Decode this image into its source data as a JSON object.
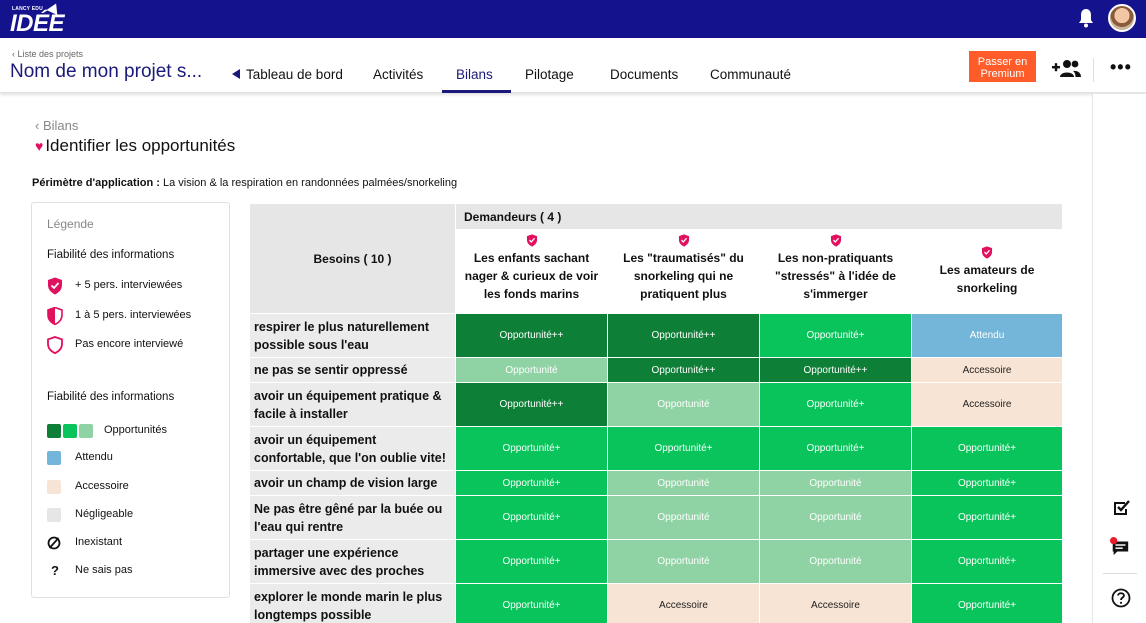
{
  "brand": {
    "small_text": "LANCY EDU",
    "logo_text": "IDÉE"
  },
  "header": {
    "back_link": "‹ Liste des projets",
    "project_name": "Nom de mon projet s...",
    "tabs": [
      {
        "label": "Tableau de bord"
      },
      {
        "label": "Activités"
      },
      {
        "label": "Bilans"
      },
      {
        "label": "Pilotage"
      },
      {
        "label": "Documents"
      },
      {
        "label": "Communauté"
      }
    ],
    "active_tab": "Bilans",
    "premium_button": "Passer en Premium",
    "more_label": "•••"
  },
  "page": {
    "breadcrumb": "‹ Bilans",
    "title": "Identifier les opportunités",
    "scope_label": "Périmètre d'application :",
    "scope_value": " La vision & la respiration en randonnées palmées/snorkeling"
  },
  "legend": {
    "title": "Légende",
    "section1": "Fiabilité des informations",
    "items1": [
      {
        "label": "+ 5 pers. interviewées"
      },
      {
        "label": "1 à 5 pers. interviewées"
      },
      {
        "label": "Pas encore interviewé"
      }
    ],
    "section2": "Fiabilité des informations",
    "items2": [
      {
        "label": "Opportunités"
      },
      {
        "label": "Attendu"
      },
      {
        "label": "Accessoire"
      },
      {
        "label": "Négligeable"
      },
      {
        "label": "Inexistant"
      },
      {
        "label": "Ne sais pas"
      }
    ],
    "colors": {
      "dark": "#0e7f36",
      "mid": "#08c45a",
      "light": "#8fd2a4",
      "attendu": "#73b6d9",
      "accessoire": "#f8e4d4",
      "negligeable": "#e6e6e6"
    }
  },
  "table": {
    "demandeurs_header": "Demandeurs ( 4 )",
    "besoins_header": "Besoins ( 10 )",
    "columns": [
      "Les enfants sachant nager & curieux de voir les fonds marins",
      "Les \"traumatisés\" du snorkeling qui ne pratiquent plus",
      "Les non-pratiquants \"stressés\" à l'idée de s'immerger",
      "Les amateurs de snorkeling"
    ],
    "rows": [
      {
        "need": "respirer le plus naturellement possible sous l'eau",
        "cells": [
          "Opportunité++",
          "Opportunité++",
          "Opportunité+",
          "Attendu"
        ]
      },
      {
        "need": "ne pas se sentir oppressé",
        "cells": [
          "Opportunité",
          "Opportunité++",
          "Opportunité++",
          "Accessoire"
        ]
      },
      {
        "need": "avoir un équipement pratique & facile à installer",
        "cells": [
          "Opportunité++",
          "Opportunité",
          "Opportunité+",
          "Accessoire"
        ]
      },
      {
        "need": "avoir un équipement confortable, que l'on oublie vite!",
        "cells": [
          "Opportunité+",
          "Opportunité+",
          "Opportunité+",
          "Opportunité+"
        ]
      },
      {
        "need": "avoir un champ de vision large",
        "cells": [
          "Opportunité+",
          "Opportunité",
          "Opportunité",
          "Opportunité+"
        ]
      },
      {
        "need": "Ne pas être gêné par la buée ou l'eau qui rentre",
        "cells": [
          "Opportunité+",
          "Opportunité",
          "Opportunité",
          "Opportunité+"
        ]
      },
      {
        "need": "partager une expérience immersive avec des proches",
        "cells": [
          "Opportunité+",
          "Opportunité",
          "Opportunité",
          "Opportunité+"
        ]
      },
      {
        "need": "explorer le monde marin le plus longtemps possible",
        "cells": [
          "Opportunité+",
          "Accessoire",
          "Accessoire",
          "Opportunité+"
        ]
      }
    ]
  }
}
